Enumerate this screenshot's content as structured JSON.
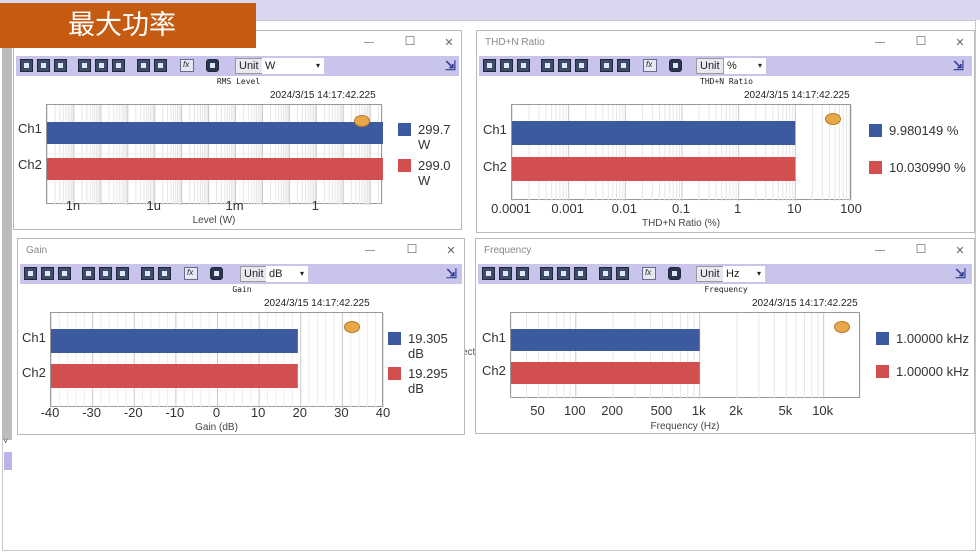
{
  "slide_title": "最大功率",
  "stray_text": "ect",
  "panels": {
    "rms": {
      "window_title": "",
      "chart_title": "RMS Level",
      "timestamp": "2024/3/15 14:17:42.225",
      "unit_label": "Unit",
      "unit_value": "W",
      "xlabel": "Level (W)",
      "ticks": [
        "1n",
        "1u",
        "1m",
        "1"
      ],
      "channels": [
        {
          "name": "Ch1",
          "value": 299.7,
          "display": "299.7 W",
          "color": "#3c5aa0"
        },
        {
          "name": "Ch2",
          "value": 299.0,
          "display": "299.0 W",
          "color": "#d34e4e"
        }
      ]
    },
    "thdn": {
      "window_title": "THD+N Ratio",
      "chart_title": "THD+N Ratio",
      "timestamp": "2024/3/15 14:17:42.225",
      "unit_label": "Unit",
      "unit_value": "%",
      "xlabel": "THD+N Ratio (%)",
      "ticks": [
        "0.0001",
        "0.001",
        "0.01",
        "0.1",
        "1",
        "10",
        "100"
      ],
      "channels": [
        {
          "name": "Ch1",
          "value": 9.980149,
          "display": "9.980149 %",
          "color": "#3c5aa0"
        },
        {
          "name": "Ch2",
          "value": 10.03099,
          "display": "10.030990 %",
          "color": "#d34e4e"
        }
      ]
    },
    "gain": {
      "window_title": "Gain",
      "chart_title": "Gain",
      "timestamp": "2024/3/15 14:17:42.225",
      "unit_label": "Unit",
      "unit_value": "dB",
      "xlabel": "Gain (dB)",
      "ticks": [
        "-40",
        "-30",
        "-20",
        "-10",
        "0",
        "10",
        "20",
        "30",
        "40"
      ],
      "channels": [
        {
          "name": "Ch1",
          "value": 19.305,
          "display": "19.305 dB",
          "color": "#3c5aa0"
        },
        {
          "name": "Ch2",
          "value": 19.295,
          "display": "19.295 dB",
          "color": "#d34e4e"
        }
      ]
    },
    "freq": {
      "window_title": "Frequency",
      "chart_title": "Frequency",
      "timestamp": "2024/3/15 14:17:42.225",
      "unit_label": "Unit",
      "unit_value": "Hz",
      "xlabel": "Frequency (Hz)",
      "ticks": [
        "50",
        "100",
        "200",
        "500",
        "1k",
        "2k",
        "5k",
        "10k"
      ],
      "channels": [
        {
          "name": "Ch1",
          "value": 1000,
          "display": "1.00000 kHz",
          "color": "#3c5aa0"
        },
        {
          "name": "Ch2",
          "value": 1000,
          "display": "1.00000 kHz",
          "color": "#d34e4e"
        }
      ]
    }
  },
  "chart_data": [
    {
      "type": "bar",
      "title": "RMS Level",
      "xlabel": "Level (W)",
      "categories": [
        "Ch1",
        "Ch2"
      ],
      "values": [
        299.7,
        299.0
      ],
      "xscale": "log",
      "xlim": [
        1e-10,
        300
      ],
      "orientation": "horizontal"
    },
    {
      "type": "bar",
      "title": "THD+N Ratio",
      "xlabel": "THD+N Ratio (%)",
      "categories": [
        "Ch1",
        "Ch2"
      ],
      "values": [
        9.980149,
        10.03099
      ],
      "xscale": "log",
      "xlim": [
        0.0001,
        100
      ],
      "orientation": "horizontal"
    },
    {
      "type": "bar",
      "title": "Gain",
      "xlabel": "Gain (dB)",
      "categories": [
        "Ch1",
        "Ch2"
      ],
      "values": [
        19.305,
        19.295
      ],
      "xscale": "linear",
      "xlim": [
        -40,
        40
      ],
      "orientation": "horizontal"
    },
    {
      "type": "bar",
      "title": "Frequency",
      "xlabel": "Frequency (Hz)",
      "categories": [
        "Ch1",
        "Ch2"
      ],
      "values": [
        1000,
        1000
      ],
      "xscale": "log",
      "xlim": [
        30,
        20000
      ],
      "orientation": "horizontal"
    }
  ]
}
